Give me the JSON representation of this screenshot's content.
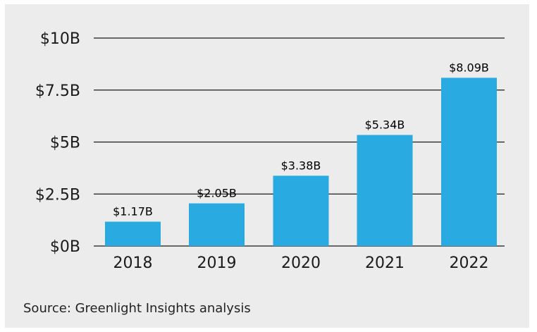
{
  "chart_data": {
    "type": "bar",
    "title": "",
    "xlabel": "",
    "ylabel": "",
    "categories": [
      "2018",
      "2019",
      "2020",
      "2021",
      "2022"
    ],
    "values": [
      1.17,
      2.05,
      3.38,
      5.34,
      8.09
    ],
    "data_labels": [
      "$1.17B",
      "$2.05B",
      "$3.38B",
      "$5.34B",
      "$8.09B"
    ],
    "ylim": [
      0,
      10
    ],
    "y_ticks": [
      0,
      2.5,
      5,
      7.5,
      10
    ],
    "y_tick_labels": [
      "$0B",
      "$2.5B",
      "$5B",
      "$7.5B",
      "$10B"
    ],
    "grid": true,
    "legend": "none",
    "bar_color": "#29abe2",
    "gridline_color": "#1a1a1a",
    "panel_color": "#ececec"
  },
  "source_text": "Source: Greenlight Insights analysis"
}
